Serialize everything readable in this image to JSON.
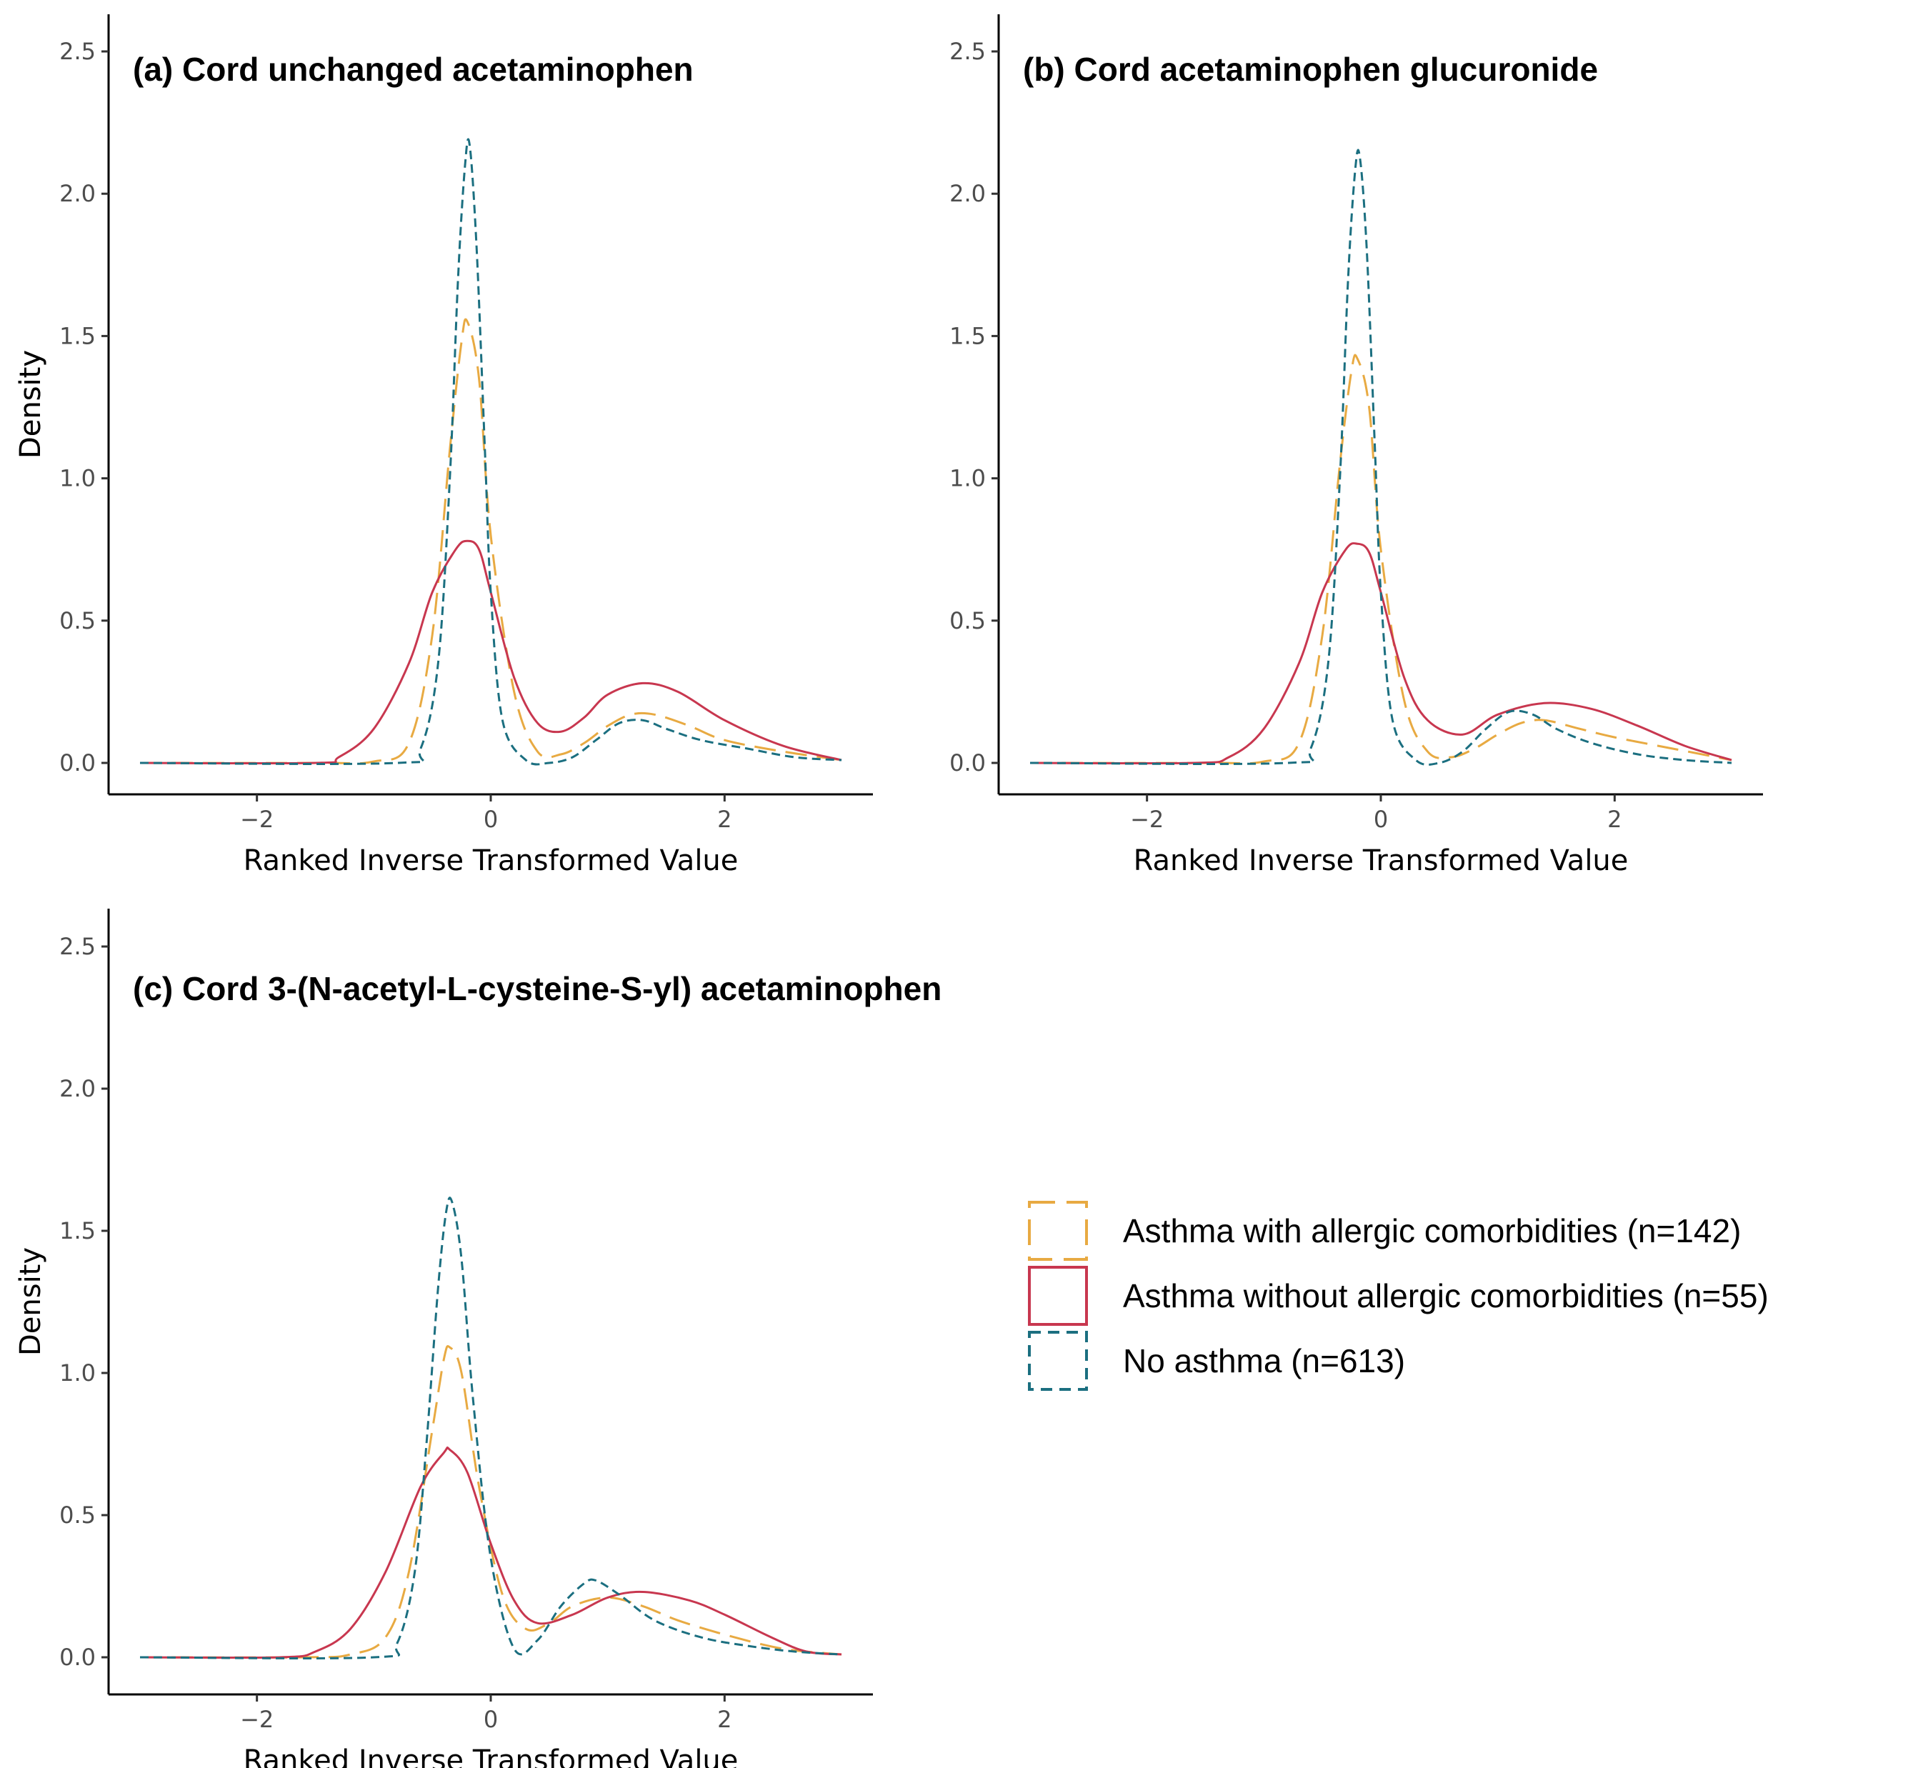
{
  "colors": {
    "asthma_allergic": "#E8AA42",
    "asthma_no_allergic": "#C8374F",
    "no_asthma": "#1B6F80"
  },
  "legend": {
    "items": [
      {
        "label": "Asthma with allergic comorbidities (n=142)",
        "color": "#E8AA42",
        "dash": "long"
      },
      {
        "label": "Asthma without allergic comorbidities (n=55)",
        "color": "#C8374F",
        "dash": "solid"
      },
      {
        "label": "No asthma (n=613)",
        "color": "#1B6F80",
        "dash": "short"
      }
    ]
  },
  "chart_data": [
    {
      "type": "line",
      "title": "(a) Cord unchanged acetaminophen",
      "xlabel": "Ranked Inverse Transformed Value",
      "ylabel": "Density",
      "xlim": [
        -3,
        3
      ],
      "ylim": [
        0,
        2.5
      ],
      "xticks": [
        -2,
        0,
        2
      ],
      "yticks": [
        0.0,
        0.5,
        1.0,
        1.5,
        2.0,
        2.5
      ],
      "ytick_labels": [
        "0.0",
        "0.5",
        "1.0",
        "1.5",
        "2.0",
        "2.5"
      ],
      "grid": false,
      "series": [
        {
          "name": "Asthma with allergic comorbidities (n=142)",
          "color": "#E8AA42",
          "x": [
            -3.0,
            -1.5,
            -1.0,
            -0.7,
            -0.5,
            -0.35,
            -0.25,
            -0.2,
            -0.1,
            0.0,
            0.2,
            0.4,
            0.6,
            0.8,
            1.0,
            1.2,
            1.4,
            1.7,
            2.0,
            2.5,
            3.0
          ],
          "y": [
            0.0,
            0.0,
            0.005,
            0.07,
            0.45,
            1.1,
            1.48,
            1.55,
            1.35,
            0.8,
            0.25,
            0.04,
            0.03,
            0.07,
            0.13,
            0.17,
            0.17,
            0.13,
            0.08,
            0.04,
            0.01
          ]
        },
        {
          "name": "Asthma without allergic comorbidities (n=55)",
          "color": "#C8374F",
          "x": [
            -3.0,
            -1.5,
            -1.3,
            -1.0,
            -0.7,
            -0.5,
            -0.3,
            -0.2,
            -0.1,
            0.0,
            0.2,
            0.4,
            0.6,
            0.8,
            1.0,
            1.3,
            1.6,
            2.0,
            2.5,
            3.0
          ],
          "y": [
            0.0,
            0.0,
            0.02,
            0.12,
            0.35,
            0.6,
            0.75,
            0.78,
            0.75,
            0.6,
            0.3,
            0.14,
            0.11,
            0.16,
            0.24,
            0.28,
            0.25,
            0.15,
            0.06,
            0.01
          ]
        },
        {
          "name": "No asthma (n=613)",
          "color": "#1B6F80",
          "x": [
            -3.0,
            -0.8,
            -0.6,
            -0.45,
            -0.35,
            -0.28,
            -0.22,
            -0.18,
            -0.12,
            -0.05,
            0.0,
            0.1,
            0.3,
            0.5,
            0.7,
            0.9,
            1.1,
            1.3,
            1.5,
            1.8,
            2.2,
            2.6,
            3.0
          ],
          "y": [
            0.0,
            0.0,
            0.05,
            0.35,
            1.0,
            1.7,
            2.1,
            2.17,
            1.8,
            1.1,
            0.6,
            0.15,
            0.01,
            0.0,
            0.02,
            0.08,
            0.14,
            0.15,
            0.12,
            0.08,
            0.05,
            0.02,
            0.01
          ]
        }
      ]
    },
    {
      "type": "line",
      "title": "(b) Cord acetaminophen glucuronide",
      "xlabel": "Ranked Inverse Transformed Value",
      "ylabel": "Density",
      "xlim": [
        -3,
        3
      ],
      "ylim": [
        0,
        2.5
      ],
      "xticks": [
        -2,
        0,
        2
      ],
      "yticks": [
        0.0,
        0.5,
        1.0,
        1.5,
        2.0,
        2.5
      ],
      "ytick_labels": [
        "0.0",
        "0.5",
        "1.0",
        "1.5",
        "2.0",
        "2.5"
      ],
      "grid": false,
      "series": [
        {
          "name": "Asthma with allergic comorbidities (n=142)",
          "color": "#E8AA42",
          "x": [
            -3.0,
            -1.5,
            -1.0,
            -0.7,
            -0.5,
            -0.35,
            -0.25,
            -0.2,
            -0.1,
            0.0,
            0.2,
            0.4,
            0.6,
            0.8,
            1.0,
            1.2,
            1.4,
            1.7,
            2.0,
            2.5,
            3.0
          ],
          "y": [
            0.0,
            0.0,
            0.005,
            0.07,
            0.45,
            1.05,
            1.38,
            1.42,
            1.25,
            0.75,
            0.22,
            0.04,
            0.02,
            0.05,
            0.1,
            0.14,
            0.15,
            0.12,
            0.09,
            0.05,
            0.01
          ]
        },
        {
          "name": "Asthma without allergic comorbidities (n=55)",
          "color": "#C8374F",
          "x": [
            -3.0,
            -1.6,
            -1.3,
            -1.0,
            -0.7,
            -0.5,
            -0.3,
            -0.2,
            -0.1,
            0.0,
            0.2,
            0.4,
            0.7,
            1.0,
            1.4,
            1.8,
            2.2,
            2.6,
            3.0
          ],
          "y": [
            0.0,
            0.0,
            0.02,
            0.12,
            0.35,
            0.6,
            0.75,
            0.77,
            0.74,
            0.6,
            0.3,
            0.15,
            0.1,
            0.17,
            0.21,
            0.19,
            0.13,
            0.06,
            0.01
          ]
        },
        {
          "name": "No asthma (n=613)",
          "color": "#1B6F80",
          "x": [
            -3.0,
            -0.8,
            -0.6,
            -0.45,
            -0.35,
            -0.28,
            -0.22,
            -0.18,
            -0.12,
            -0.05,
            0.0,
            0.1,
            0.3,
            0.5,
            0.7,
            0.9,
            1.1,
            1.3,
            1.5,
            1.8,
            2.2,
            2.6,
            3.0
          ],
          "y": [
            0.0,
            0.0,
            0.05,
            0.35,
            1.0,
            1.7,
            2.08,
            2.13,
            1.8,
            1.1,
            0.6,
            0.15,
            0.01,
            0.0,
            0.04,
            0.12,
            0.18,
            0.17,
            0.12,
            0.07,
            0.03,
            0.01,
            0.0
          ]
        }
      ]
    },
    {
      "type": "line",
      "title": "(c) Cord 3-(N-acetyl-L-cysteine-S-yl) acetaminophen",
      "xlabel": "Ranked Inverse Transformed Value",
      "ylabel": "Density",
      "xlim": [
        -3,
        3
      ],
      "ylim": [
        0,
        2.5
      ],
      "xticks": [
        -2,
        0,
        2
      ],
      "yticks": [
        0.0,
        0.5,
        1.0,
        1.5,
        2.0,
        2.5
      ],
      "ytick_labels": [
        "0.0",
        "0.5",
        "1.0",
        "1.5",
        "2.0",
        "2.5"
      ],
      "grid": false,
      "series": [
        {
          "name": "Asthma with allergic comorbidities (n=142)",
          "color": "#E8AA42",
          "x": [
            -3.0,
            -1.6,
            -1.2,
            -0.9,
            -0.7,
            -0.5,
            -0.4,
            -0.35,
            -0.25,
            -0.1,
            0.1,
            0.3,
            0.5,
            0.7,
            1.0,
            1.3,
            1.6,
            2.0,
            2.5,
            3.0
          ],
          "y": [
            0.0,
            0.0,
            0.01,
            0.07,
            0.3,
            0.8,
            1.05,
            1.09,
            1.0,
            0.6,
            0.22,
            0.1,
            0.12,
            0.18,
            0.21,
            0.18,
            0.13,
            0.08,
            0.03,
            0.01
          ]
        },
        {
          "name": "Asthma without allergic comorbidities (n=55)",
          "color": "#C8374F",
          "x": [
            -3.0,
            -1.8,
            -1.5,
            -1.2,
            -0.9,
            -0.6,
            -0.4,
            -0.35,
            -0.2,
            0.0,
            0.2,
            0.4,
            0.7,
            1.0,
            1.3,
            1.7,
            2.0,
            2.4,
            2.7,
            3.0
          ],
          "y": [
            0.0,
            0.0,
            0.02,
            0.1,
            0.3,
            0.6,
            0.72,
            0.73,
            0.65,
            0.4,
            0.2,
            0.12,
            0.15,
            0.21,
            0.23,
            0.2,
            0.15,
            0.07,
            0.02,
            0.01
          ]
        },
        {
          "name": "No asthma (n=613)",
          "color": "#1B6F80",
          "x": [
            -3.0,
            -1.0,
            -0.8,
            -0.65,
            -0.55,
            -0.45,
            -0.38,
            -0.33,
            -0.25,
            -0.15,
            0.0,
            0.2,
            0.4,
            0.6,
            0.8,
            0.9,
            1.1,
            1.4,
            1.8,
            2.2,
            2.6,
            3.0
          ],
          "y": [
            0.0,
            0.0,
            0.05,
            0.3,
            0.75,
            1.3,
            1.57,
            1.6,
            1.4,
            0.9,
            0.35,
            0.03,
            0.06,
            0.18,
            0.26,
            0.27,
            0.22,
            0.13,
            0.07,
            0.04,
            0.02,
            0.01
          ]
        }
      ]
    }
  ]
}
